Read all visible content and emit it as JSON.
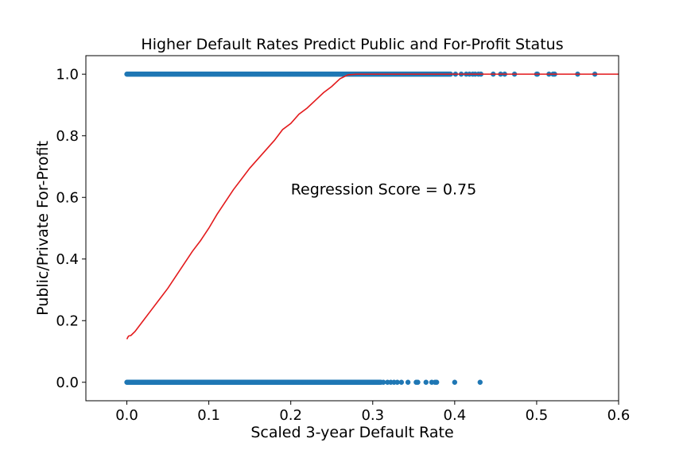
{
  "chart_data": {
    "type": "scatter",
    "title": "Higher Default Rates Predict Public and For-Profit Status",
    "xlabel": "Scaled 3-year Default Rate",
    "ylabel": "Public/Private For-Profit",
    "xlim": [
      -0.05,
      0.6
    ],
    "ylim": [
      -0.06,
      1.06
    ],
    "xticks": [
      0.0,
      0.1,
      0.2,
      0.3,
      0.4,
      0.5,
      0.6
    ],
    "xtick_labels": [
      "0.0",
      "0.1",
      "0.2",
      "0.3",
      "0.4",
      "0.5",
      "0.6"
    ],
    "yticks": [
      0.0,
      0.2,
      0.4,
      0.6,
      0.8,
      1.0
    ],
    "ytick_labels": [
      "0.0",
      "0.2",
      "0.4",
      "0.6",
      "0.8",
      "1.0"
    ],
    "annotation": {
      "text": "Regression Score = 0.75",
      "x": 0.2,
      "y": 0.61
    },
    "colors": {
      "points": "#1f77b4",
      "curve": "#e31a1c",
      "axes": "#000000"
    },
    "series": [
      {
        "name": "observations y=1",
        "kind": "scatter",
        "y": 1,
        "dense_range": [
          0.0,
          0.395
        ],
        "x_sparse": [
          0.401,
          0.408,
          0.414,
          0.418,
          0.422,
          0.425,
          0.429,
          0.432,
          0.447,
          0.456,
          0.461,
          0.473,
          0.5,
          0.501,
          0.515,
          0.52,
          0.522,
          0.55,
          0.571
        ]
      },
      {
        "name": "observations y=0",
        "kind": "scatter",
        "y": 0,
        "dense_range": [
          0.0,
          0.31
        ],
        "x_sparse": [
          0.313,
          0.318,
          0.322,
          0.326,
          0.33,
          0.335,
          0.343,
          0.353,
          0.355,
          0.365,
          0.372,
          0.376,
          0.378,
          0.4,
          0.431
        ]
      },
      {
        "name": "predicted probability",
        "kind": "line",
        "x": [
          0.0,
          0.002,
          0.005,
          0.01,
          0.02,
          0.03,
          0.04,
          0.05,
          0.06,
          0.07,
          0.08,
          0.09,
          0.1,
          0.11,
          0.12,
          0.13,
          0.14,
          0.15,
          0.16,
          0.17,
          0.18,
          0.19,
          0.2,
          0.21,
          0.22,
          0.23,
          0.24,
          0.25,
          0.26,
          0.27,
          0.28,
          0.29,
          0.3,
          0.4,
          0.5,
          0.6
        ],
        "y": [
          0.14,
          0.15,
          0.152,
          0.165,
          0.2,
          0.235,
          0.27,
          0.305,
          0.345,
          0.385,
          0.425,
          0.46,
          0.5,
          0.545,
          0.585,
          0.625,
          0.66,
          0.695,
          0.725,
          0.755,
          0.785,
          0.82,
          0.84,
          0.87,
          0.89,
          0.915,
          0.94,
          0.96,
          0.985,
          0.998,
          1.0,
          1.0,
          1.0,
          1.0,
          1.0,
          1.0
        ]
      }
    ]
  }
}
